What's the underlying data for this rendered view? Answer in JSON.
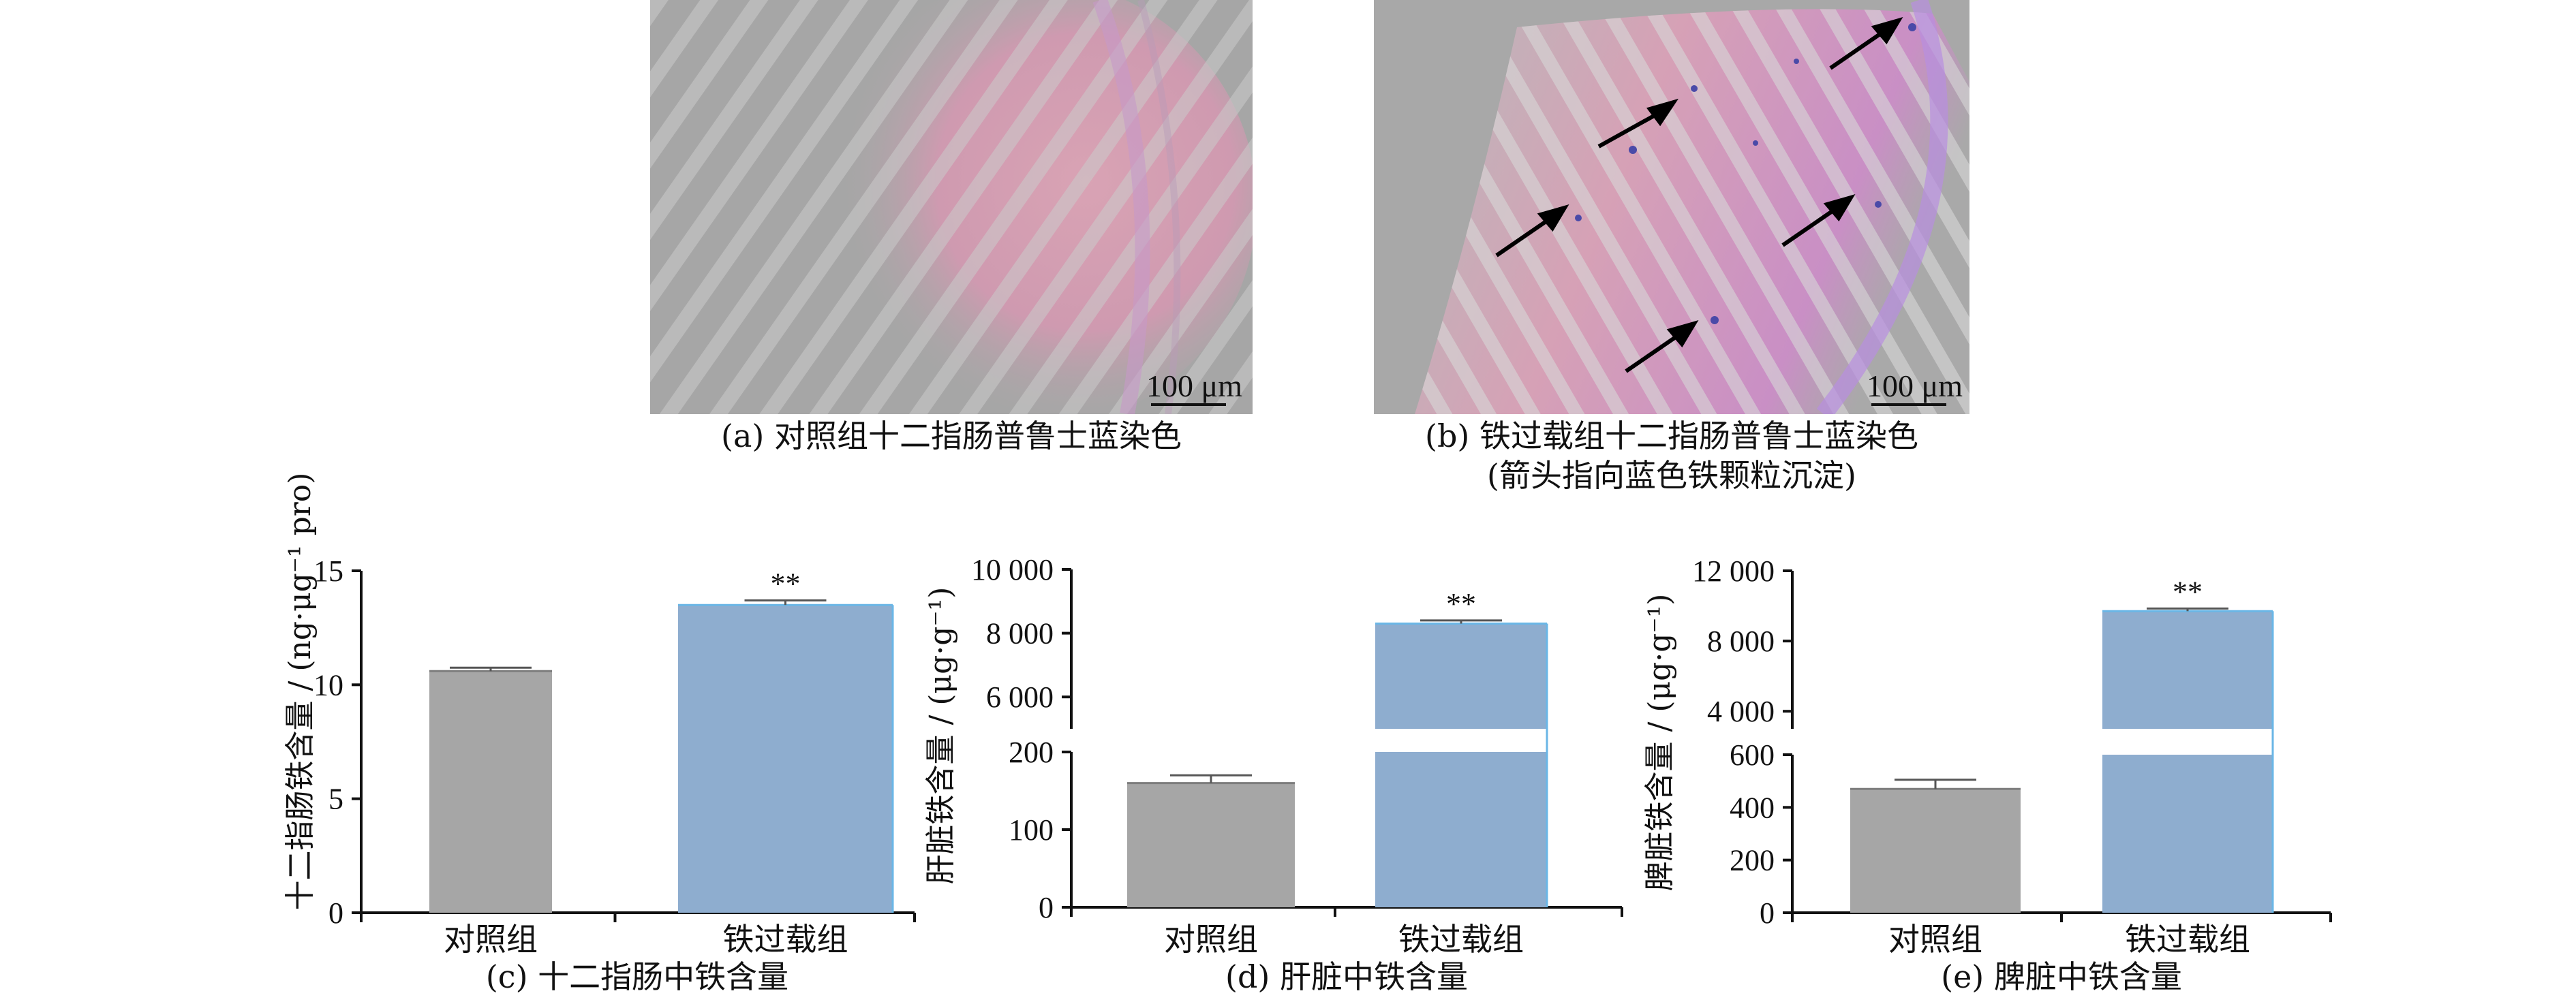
{
  "panel_a": {
    "caption": "(a) 对照组十二指肠普鲁士蓝染色",
    "scalebar": "100 μm"
  },
  "panel_b": {
    "caption_line1": "(b) 铁过载组十二指肠普鲁士蓝染色",
    "caption_line2": "(箭头指向蓝色铁颗粒沉淀)",
    "scalebar": "100 μm"
  },
  "colors": {
    "control_bar": "#a6a6a6",
    "overload_bar": "#8eadcf",
    "overload_edge": "#6ab6e6",
    "axis": "#111111"
  },
  "chart_data": [
    {
      "type": "bar",
      "caption": "(c) 十二指肠中铁含量",
      "ylabel": "十二指肠铁含量 / (ng·μg⁻¹ pro)",
      "categories": [
        "对照组",
        "铁过载组"
      ],
      "values": [
        10.6,
        13.5
      ],
      "errors": [
        0.15,
        0.2
      ],
      "significance": [
        "",
        "**"
      ],
      "ylim": [
        0,
        15
      ],
      "yticks": [
        {
          "value": 0,
          "label": "0"
        },
        {
          "value": 5,
          "label": "5"
        },
        {
          "value": 10,
          "label": "10"
        },
        {
          "value": 15,
          "label": "15"
        }
      ]
    },
    {
      "type": "bar",
      "caption": "(d) 肝脏中铁含量",
      "ylabel": "肝脏铁含量 / (μg·g⁻¹)",
      "categories": [
        "对照组",
        "铁过载组"
      ],
      "values": [
        160,
        8300
      ],
      "errors": [
        10,
        100
      ],
      "significance": [
        "",
        "**"
      ],
      "broken_axis": true,
      "lower_ylim": [
        0,
        200
      ],
      "upper_ylim": [
        5000,
        10000
      ],
      "lower_ticks": [
        {
          "value": 0,
          "label": "0"
        },
        {
          "value": 100,
          "label": "100"
        },
        {
          "value": 200,
          "label": "200"
        }
      ],
      "upper_ticks": [
        {
          "value": 6000,
          "label": "6 000"
        },
        {
          "value": 8000,
          "label": "8 000"
        },
        {
          "value": 10000,
          "label": "10 000"
        }
      ]
    },
    {
      "type": "bar",
      "caption": "(e) 脾脏中铁含量",
      "ylabel": "脾脏铁含量 / (μg·g⁻¹)",
      "categories": [
        "对照组",
        "铁过载组"
      ],
      "values": [
        470,
        9700
      ],
      "errors": [
        35,
        150
      ],
      "significance": [
        "",
        "**"
      ],
      "broken_axis": true,
      "lower_ylim": [
        0,
        600
      ],
      "upper_ylim": [
        3000,
        12000
      ],
      "lower_ticks": [
        {
          "value": 0,
          "label": "0"
        },
        {
          "value": 200,
          "label": "200"
        },
        {
          "value": 400,
          "label": "400"
        },
        {
          "value": 600,
          "label": "600"
        }
      ],
      "upper_ticks": [
        {
          "value": 4000,
          "label": "4 000"
        },
        {
          "value": 8000,
          "label": "8 000"
        },
        {
          "value": 12000,
          "label": "12 000"
        }
      ]
    }
  ]
}
